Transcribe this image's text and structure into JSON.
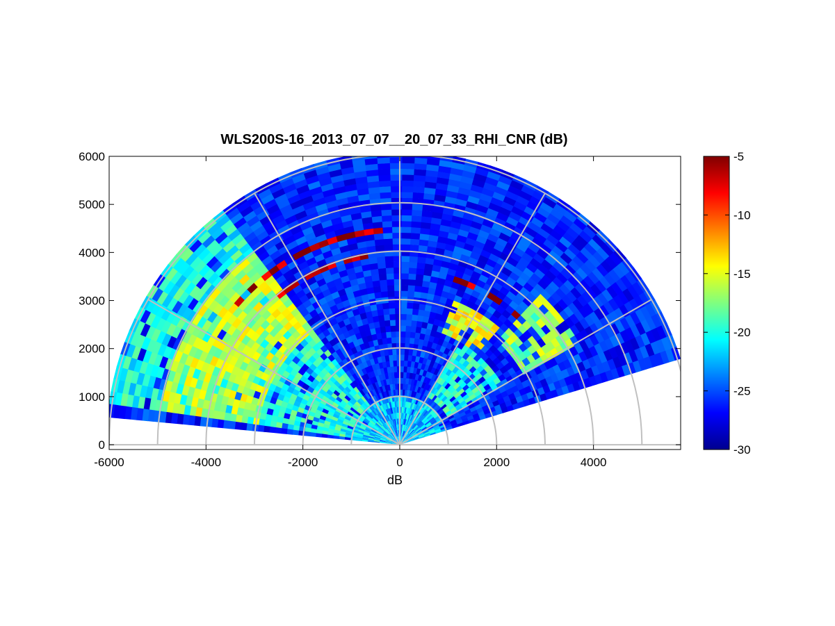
{
  "chart_data": {
    "type": "heatmap",
    "subtype": "polar RHI scan (range-height indicator)",
    "title": "WLS200S-16_2013_07_07__20_07_33_RHI_CNR (dB)",
    "xlabel": "dB",
    "ylabel": "",
    "xlim": [
      -6000,
      5800
    ],
    "ylim": [
      -100,
      6000
    ],
    "x_ticks": [
      "-6000",
      "-4000",
      "-2000",
      "0",
      "2000",
      "4000"
    ],
    "x_tick_values": [
      -6000,
      -4000,
      -2000,
      0,
      2000,
      4000
    ],
    "y_ticks": [
      "0",
      "1000",
      "2000",
      "3000",
      "4000",
      "5000",
      "6000"
    ],
    "y_tick_values": [
      0,
      1000,
      2000,
      3000,
      4000,
      5000,
      6000
    ],
    "grid": true,
    "polar_grid": {
      "range_rings": [
        1000,
        2000,
        3000,
        4000,
        5000,
        6000
      ],
      "azimuth_spokes_deg": [
        0,
        30,
        60,
        90,
        120,
        150,
        180
      ]
    },
    "scan": {
      "elevation_start_deg": 17,
      "elevation_end_deg": 173,
      "max_range": 6000
    },
    "colorbar": {
      "colormap": "jet",
      "clim": [
        -30,
        -5
      ],
      "ticks": [
        "-5",
        "-10",
        "-15",
        "-20",
        "-25",
        "-30"
      ],
      "tick_values": [
        -5,
        -10,
        -15,
        -20,
        -25,
        -30
      ],
      "label": ""
    },
    "features": [
      {
        "angle_deg": [
          126,
          173
        ],
        "range": [
          0,
          6000
        ],
        "cnr_db": -20
      },
      {
        "angle_deg": [
          126,
          173
        ],
        "range": [
          3000,
          5000
        ],
        "cnr_db": -16
      },
      {
        "angle_deg": [
          95,
          140
        ],
        "range": [
          4350,
          4550
        ],
        "cnr_db": -6
      },
      {
        "angle_deg": [
          100,
          130
        ],
        "range": [
          3850,
          4000
        ],
        "cnr_db": -7
      },
      {
        "angle_deg": [
          48,
          73
        ],
        "range": [
          3500,
          3650
        ],
        "cnr_db": -6
      },
      {
        "angle_deg": [
          50,
          70
        ],
        "range": [
          2500,
          3200
        ],
        "cnr_db": -15
      },
      {
        "angle_deg": [
          30,
          48
        ],
        "range": [
          3000,
          4200
        ],
        "cnr_db": -17
      },
      {
        "angle_deg": [
          30,
          60
        ],
        "range": [
          1200,
          2500
        ],
        "cnr_db": -20
      },
      {
        "angle_deg": [
          0,
          180
        ],
        "range": [
          0,
          1000
        ],
        "cnr_db": -22
      }
    ]
  }
}
